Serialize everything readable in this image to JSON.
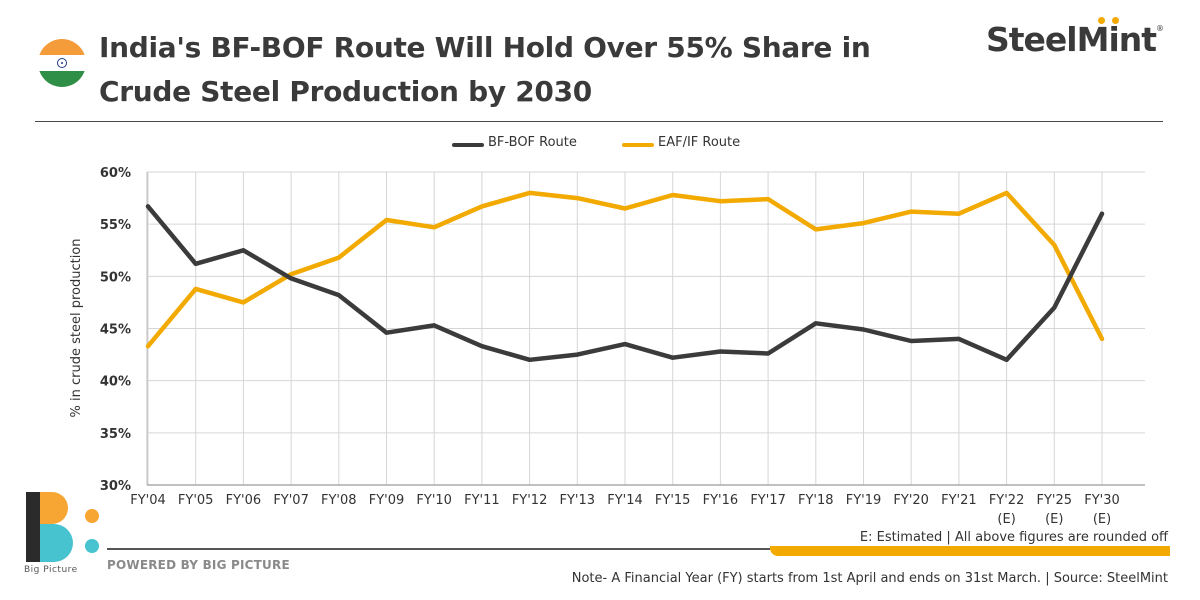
{
  "header": {
    "title_line1": "India's BF-BOF Route Will Hold Over 55% Share in",
    "title_line2": "Crude Steel Production by 2030",
    "brand": "SteelMint",
    "brand_reg": "®",
    "flag_icon": "india-flag-icon"
  },
  "legend": {
    "series1_label": "BF-BOF Route",
    "series2_label": "EAF/IF Route"
  },
  "colors": {
    "bf_bof": "#3b3b3b",
    "eaf_if": "#f2a900",
    "grid": "#d6d6d6",
    "accent_teal": "#46c3cf",
    "accent_orange": "#f7a634"
  },
  "chart_data": {
    "type": "line",
    "title": "",
    "xlabel": "",
    "ylabel": "% in crude steel production",
    "ylim": [
      30,
      60
    ],
    "yticks": [
      "30%",
      "35%",
      "40%",
      "45%",
      "50%",
      "55%",
      "60%"
    ],
    "categories": [
      "FY'04",
      "FY'05",
      "FY'06",
      "FY'07",
      "FY'08",
      "FY'09",
      "FY'10",
      "FY'11",
      "FY'12",
      "FY'13",
      "FY'14",
      "FY'15",
      "FY'16",
      "FY'17",
      "FY'18",
      "FY'19",
      "FY'20",
      "FY'21",
      "FY'22",
      "FY'25",
      "FY'30"
    ],
    "category_sublabels": [
      "",
      "",
      "",
      "",
      "",
      "",
      "",
      "",
      "",
      "",
      "",
      "",
      "",
      "",
      "",
      "",
      "",
      "",
      "(E)",
      "(E)",
      "(E)"
    ],
    "series": [
      {
        "name": "BF-BOF Route",
        "values": [
          56.7,
          51.2,
          52.5,
          49.8,
          48.2,
          44.6,
          45.3,
          43.3,
          42.0,
          42.5,
          43.5,
          42.2,
          42.8,
          42.6,
          45.5,
          44.9,
          43.8,
          44.0,
          42.0,
          47.0,
          56.0
        ]
      },
      {
        "name": "EAF/IF Route",
        "values": [
          43.3,
          48.8,
          47.5,
          50.2,
          51.8,
          55.4,
          54.7,
          56.7,
          58.0,
          57.5,
          56.5,
          57.8,
          57.2,
          57.4,
          54.5,
          55.1,
          56.2,
          56.0,
          58.0,
          53.0,
          44.0
        ]
      }
    ],
    "grid": true,
    "legend_position": "top-center"
  },
  "notes": {
    "estimated": "E: Estimated  |  All above figures are rounded off",
    "fy_note": "Note- A Financial Year (FY) starts from 1st April and ends on 31st March.  |  Source: SteelMint",
    "powered_by": "POWERED BY BIG PICTURE",
    "bp_name": "Big Picture"
  }
}
